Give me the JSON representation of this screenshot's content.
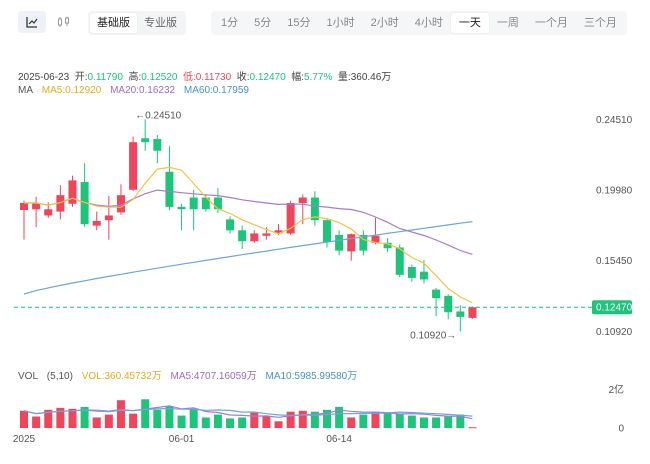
{
  "toolbar": {
    "chart_icons": [
      {
        "name": "line-chart-icon",
        "active": true
      },
      {
        "name": "candlestick-icon",
        "active": false
      }
    ],
    "modes": [
      {
        "label": "基础版",
        "active": true
      },
      {
        "label": "专业版",
        "active": false
      }
    ],
    "intervals": [
      {
        "label": "1分",
        "active": false
      },
      {
        "label": "5分",
        "active": false
      },
      {
        "label": "15分",
        "active": false
      },
      {
        "label": "1小时",
        "active": false
      },
      {
        "label": "2小时",
        "active": false
      },
      {
        "label": "4小时",
        "active": false
      },
      {
        "label": "一天",
        "active": true
      },
      {
        "label": "一周",
        "active": false
      },
      {
        "label": "一个月",
        "active": false
      },
      {
        "label": "三个月",
        "active": false
      }
    ]
  },
  "legend": {
    "date": "2025-06-23",
    "open_label": "开:",
    "open": "0.11790",
    "high_label": "高:",
    "high": "0.12520",
    "low_label": "低:",
    "low": "0.11730",
    "close_label": "收:",
    "close": "0.12470",
    "change_label": "幅:",
    "change": "5.77%",
    "volume_label": "量:",
    "volume": "360.46万",
    "ma_label": "MA",
    "ma5": "MA5:0.12920",
    "ma20": "MA20:0.16232",
    "ma60": "MA60:0.17959",
    "vol_label": "VOL",
    "vol_params": "(5,10)",
    "vol_value": "VOL:360.45732万",
    "vol_ma5": "MA5:4707.16059万",
    "vol_ma10": "MA10:5985.99580万"
  },
  "colors": {
    "up": "#f0455a",
    "down": "#1dc47a",
    "ma5": "#f5c242",
    "ma20": "#a67bd6",
    "ma60": "#6aa6e0",
    "price_line": "#1dc47a",
    "price_tag": "#1dc47a",
    "ma_label": "#555555",
    "ohlc_value": "#1dc47a"
  },
  "chart_data": {
    "type": "candlestick",
    "price_axis": {
      "ticks": [
        "0.24510",
        "0.19980",
        "0.15450",
        "0.10920"
      ],
      "tick_values": [
        0.2451,
        0.1998,
        0.1545,
        0.1092
      ],
      "range": [
        0.1005,
        0.2575
      ]
    },
    "current_price": 0.1247,
    "current_price_label": "0.12470",
    "high_annotation": {
      "label": "←0.24510",
      "value": 0.2451,
      "index": 9
    },
    "low_annotation": {
      "label": "0.10920→",
      "value": 0.1092,
      "index": 36
    },
    "x_labels": [
      {
        "label": "2025",
        "index": 0
      },
      {
        "label": "06-01",
        "index": 13
      },
      {
        "label": "06-14",
        "index": 26
      }
    ],
    "volume_axis": {
      "ticks": [
        "2亿",
        "0"
      ],
      "tick_values": [
        2,
        0
      ],
      "unit": "亿",
      "range": [
        0,
        2.35
      ]
    },
    "candles": [
      {
        "o": 0.187,
        "c": 0.1915,
        "h": 0.193,
        "l": 0.168,
        "v": 0.9
      },
      {
        "o": 0.1875,
        "c": 0.1915,
        "h": 0.1955,
        "l": 0.176,
        "v": 0.6
      },
      {
        "o": 0.1835,
        "c": 0.1875,
        "h": 0.192,
        "l": 0.182,
        "v": 0.95
      },
      {
        "o": 0.186,
        "c": 0.1965,
        "h": 0.203,
        "l": 0.181,
        "v": 1.05
      },
      {
        "o": 0.191,
        "c": 0.206,
        "h": 0.209,
        "l": 0.189,
        "v": 1.0
      },
      {
        "o": 0.205,
        "c": 0.178,
        "h": 0.217,
        "l": 0.176,
        "v": 1.1
      },
      {
        "o": 0.177,
        "c": 0.18,
        "h": 0.186,
        "l": 0.174,
        "v": 0.55
      },
      {
        "o": 0.1805,
        "c": 0.1835,
        "h": 0.196,
        "l": 0.168,
        "v": 0.7
      },
      {
        "o": 0.1855,
        "c": 0.1965,
        "h": 0.2035,
        "l": 0.184,
        "v": 1.45
      },
      {
        "o": 0.2,
        "c": 0.2305,
        "h": 0.234,
        "l": 0.199,
        "v": 0.75
      },
      {
        "o": 0.233,
        "c": 0.2305,
        "h": 0.2451,
        "l": 0.225,
        "v": 1.5
      },
      {
        "o": 0.2325,
        "c": 0.225,
        "h": 0.235,
        "l": 0.217,
        "v": 0.95
      },
      {
        "o": 0.2115,
        "c": 0.189,
        "h": 0.228,
        "l": 0.187,
        "v": 1.15
      },
      {
        "o": 0.189,
        "c": 0.1875,
        "h": 0.191,
        "l": 0.174,
        "v": 0.65
      },
      {
        "o": 0.195,
        "c": 0.1875,
        "h": 0.2,
        "l": 0.174,
        "v": 1.0
      },
      {
        "o": 0.195,
        "c": 0.1875,
        "h": 0.1965,
        "l": 0.186,
        "v": 0.55
      },
      {
        "o": 0.195,
        "c": 0.1875,
        "h": 0.201,
        "l": 0.185,
        "v": 0.7
      },
      {
        "o": 0.181,
        "c": 0.174,
        "h": 0.183,
        "l": 0.172,
        "v": 0.5
      },
      {
        "o": 0.174,
        "c": 0.167,
        "h": 0.177,
        "l": 0.162,
        "v": 0.55
      },
      {
        "o": 0.167,
        "c": 0.172,
        "h": 0.174,
        "l": 0.166,
        "v": 0.8
      },
      {
        "o": 0.1705,
        "c": 0.172,
        "h": 0.176,
        "l": 0.168,
        "v": 0.6
      },
      {
        "o": 0.172,
        "c": 0.174,
        "h": 0.178,
        "l": 0.171,
        "v": 0.35
      },
      {
        "o": 0.172,
        "c": 0.1915,
        "h": 0.193,
        "l": 0.171,
        "v": 0.85
      },
      {
        "o": 0.1915,
        "c": 0.195,
        "h": 0.197,
        "l": 0.178,
        "v": 0.9
      },
      {
        "o": 0.195,
        "c": 0.1805,
        "h": 0.199,
        "l": 0.177,
        "v": 0.85
      },
      {
        "o": 0.1805,
        "c": 0.1665,
        "h": 0.182,
        "l": 0.163,
        "v": 0.95
      },
      {
        "o": 0.171,
        "c": 0.161,
        "h": 0.174,
        "l": 0.158,
        "v": 1.1
      },
      {
        "o": 0.1605,
        "c": 0.1715,
        "h": 0.172,
        "l": 0.1545,
        "v": 0.55
      },
      {
        "o": 0.171,
        "c": 0.161,
        "h": 0.174,
        "l": 0.158,
        "v": 0.7
      },
      {
        "o": 0.166,
        "c": 0.1705,
        "h": 0.182,
        "l": 0.165,
        "v": 0.85
      },
      {
        "o": 0.166,
        "c": 0.1625,
        "h": 0.169,
        "l": 0.16,
        "v": 0.8
      },
      {
        "o": 0.163,
        "c": 0.1455,
        "h": 0.165,
        "l": 0.144,
        "v": 0.75
      },
      {
        "o": 0.1505,
        "c": 0.1435,
        "h": 0.152,
        "l": 0.141,
        "v": 0.65
      },
      {
        "o": 0.1475,
        "c": 0.1425,
        "h": 0.155,
        "l": 0.14,
        "v": 0.55
      },
      {
        "o": 0.136,
        "c": 0.1305,
        "h": 0.137,
        "l": 0.119,
        "v": 0.55
      },
      {
        "o": 0.132,
        "c": 0.1215,
        "h": 0.133,
        "l": 0.117,
        "v": 0.6
      },
      {
        "o": 0.122,
        "c": 0.1185,
        "h": 0.126,
        "l": 0.1092,
        "v": 0.7
      },
      {
        "o": 0.1179,
        "c": 0.1247,
        "h": 0.1252,
        "l": 0.1173,
        "v": 0.04
      }
    ]
  }
}
